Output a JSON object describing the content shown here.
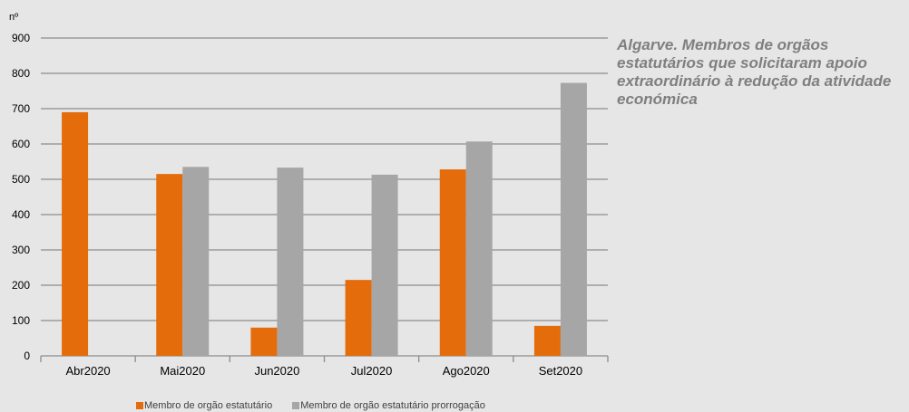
{
  "title": "Algarve. Membros de orgãos estatutários que solicitaram apoio extraordinário à redução da atividade económica",
  "colors": {
    "series1": "#e46c0a",
    "series2": "#a6a6a6",
    "grid": "#8c8c8c",
    "text": "#000000"
  },
  "chart_data": {
    "type": "bar",
    "ylabel": "nº",
    "ylim": [
      0,
      900
    ],
    "yticks": [
      0,
      100,
      200,
      300,
      400,
      500,
      600,
      700,
      800,
      900
    ],
    "grid": true,
    "legend": "bottom",
    "categories": [
      "Abr2020",
      "Mai2020",
      "Jun2020",
      "Jul2020",
      "Ago2020",
      "Set2020"
    ],
    "series": [
      {
        "name": "Membro de orgão estatutário",
        "values": [
          690,
          515,
          80,
          215,
          528,
          85
        ]
      },
      {
        "name": "Membro de orgão estatutário prorrogação",
        "values": [
          null,
          535,
          533,
          513,
          607,
          773
        ]
      }
    ]
  }
}
